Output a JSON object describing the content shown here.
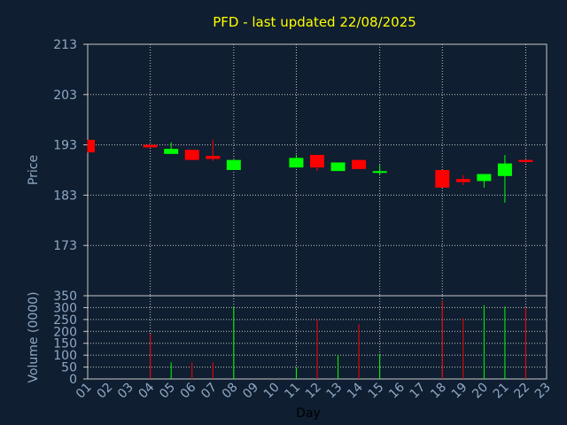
{
  "chart_data": {
    "type": "candlestick",
    "title": "PFD - last updated 22/08/2025",
    "xlabel": "Day",
    "categories": [
      "01",
      "02",
      "03",
      "04",
      "05",
      "06",
      "07",
      "08",
      "09",
      "10",
      "11",
      "12",
      "13",
      "14",
      "15",
      "16",
      "17",
      "18",
      "19",
      "20",
      "21",
      "22",
      "23"
    ],
    "price": {
      "ylabel": "Price",
      "ylim": [
        163,
        213
      ],
      "ticks": [
        "213",
        "203",
        "193",
        "183",
        "173"
      ],
      "candles": [
        {
          "day": "01",
          "open": 194.0,
          "high": 194.0,
          "low": 191.5,
          "close": 191.5
        },
        {
          "day": "04",
          "open": 193.0,
          "high": 193.0,
          "low": 192.5,
          "close": 192.5
        },
        {
          "day": "05",
          "open": 191.2,
          "high": 193.5,
          "low": 191.2,
          "close": 192.2
        },
        {
          "day": "06",
          "open": 192.0,
          "high": 192.0,
          "low": 190.0,
          "close": 190.0
        },
        {
          "day": "07",
          "open": 190.8,
          "high": 194.0,
          "low": 189.8,
          "close": 190.2
        },
        {
          "day": "08",
          "open": 188.0,
          "high": 190.0,
          "low": 188.0,
          "close": 190.0
        },
        {
          "day": "11",
          "open": 188.5,
          "high": 191.0,
          "low": 188.5,
          "close": 190.4
        },
        {
          "day": "12",
          "open": 191.0,
          "high": 191.0,
          "low": 187.8,
          "close": 188.5
        },
        {
          "day": "13",
          "open": 187.8,
          "high": 189.5,
          "low": 187.8,
          "close": 189.5
        },
        {
          "day": "14",
          "open": 190.0,
          "high": 190.0,
          "low": 188.2,
          "close": 188.2
        },
        {
          "day": "15",
          "open": 187.5,
          "high": 189.0,
          "low": 187.0,
          "close": 187.7
        },
        {
          "day": "18",
          "open": 188.0,
          "high": 188.0,
          "low": 184.5,
          "close": 184.5
        },
        {
          "day": "19",
          "open": 186.2,
          "high": 187.0,
          "low": 185.0,
          "close": 185.6
        },
        {
          "day": "20",
          "open": 185.8,
          "high": 187.2,
          "low": 184.5,
          "close": 187.2
        },
        {
          "day": "21",
          "open": 186.8,
          "high": 191.0,
          "low": 181.5,
          "close": 189.3
        },
        {
          "day": "22",
          "open": 190.0,
          "high": 190.0,
          "low": 189.3,
          "close": 189.6
        }
      ]
    },
    "volume": {
      "ylabel": "Volume (0000)",
      "ylim": [
        0,
        350
      ],
      "ticks": [
        "350",
        "300",
        "250",
        "200",
        "150",
        "100",
        "50",
        "0"
      ],
      "bars": [
        {
          "day": "04",
          "value": 190,
          "direction": "down"
        },
        {
          "day": "05",
          "value": 70,
          "direction": "up"
        },
        {
          "day": "06",
          "value": 70,
          "direction": "down"
        },
        {
          "day": "07",
          "value": 70,
          "direction": "down"
        },
        {
          "day": "08",
          "value": 305,
          "direction": "up"
        },
        {
          "day": "11",
          "value": 50,
          "direction": "up"
        },
        {
          "day": "12",
          "value": 250,
          "direction": "down"
        },
        {
          "day": "13",
          "value": 100,
          "direction": "up"
        },
        {
          "day": "14",
          "value": 230,
          "direction": "down"
        },
        {
          "day": "15",
          "value": 105,
          "direction": "up"
        },
        {
          "day": "18",
          "value": 330,
          "direction": "down"
        },
        {
          "day": "19",
          "value": 255,
          "direction": "down"
        },
        {
          "day": "20",
          "value": 310,
          "direction": "up"
        },
        {
          "day": "21",
          "value": 305,
          "direction": "up"
        },
        {
          "day": "22",
          "value": 300,
          "direction": "down"
        }
      ]
    },
    "grid": true,
    "colors": {
      "background": "#0f1e30",
      "up": "#00ff00",
      "down": "#ff0000",
      "grid": "#c8c8c8",
      "axis": "#8fa9c6",
      "title": "#ffff00"
    }
  }
}
